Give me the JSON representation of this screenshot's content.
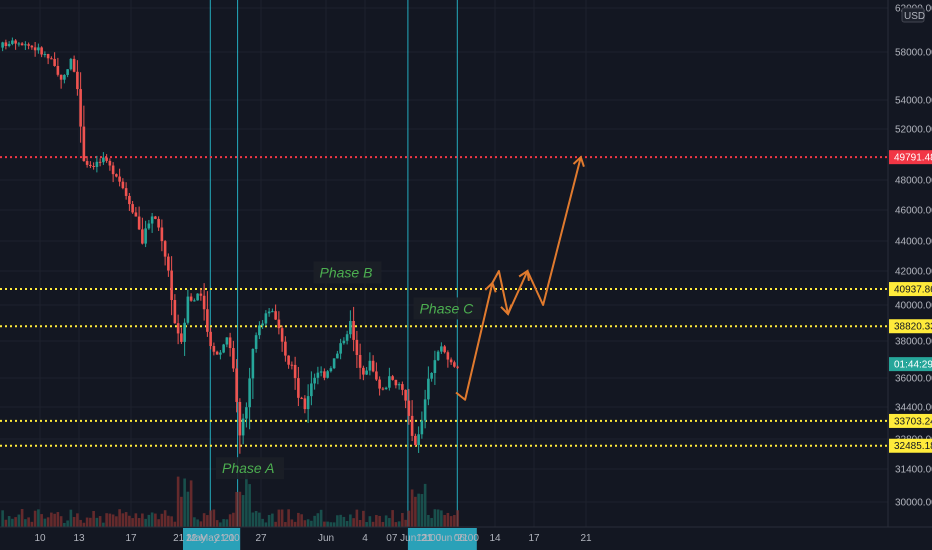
{
  "chart_data": {
    "type": "candlestick",
    "currency": "USD",
    "y_ticks": [
      "30000.00",
      "31400.00",
      "32800.00",
      "34400.00",
      "36000.00",
      "38000.00",
      "40000.00",
      "42000.00",
      "44000.00",
      "46000.00",
      "48000.00",
      "52000.00",
      "54000.00",
      "58000.00",
      "62000.00"
    ],
    "y_tick_values": [
      30000,
      31400,
      32800,
      34400,
      36000,
      38000,
      40000,
      42000,
      44000,
      46000,
      48000,
      52000,
      54000,
      58000,
      62000
    ],
    "x_ticks": [
      {
        "label": "10",
        "day": 10
      },
      {
        "label": "13",
        "day": 13
      },
      {
        "label": "17",
        "day": 17
      },
      {
        "label": "27",
        "day": 27
      },
      {
        "label": "Jun",
        "day": 32
      },
      {
        "label": "4",
        "day": 35
      },
      {
        "label": "14",
        "day": 45
      },
      {
        "label": "17",
        "day": 48
      },
      {
        "label": "21",
        "day": 52
      }
    ],
    "x_highlight_labels": [
      {
        "label": "21 May",
        "day": 21.5
      },
      {
        "label": "22 May '21",
        "day": 23.1
      },
      {
        "label": "21:00",
        "day": 24.4
      },
      {
        "label": "07 Jun '21",
        "day": 38.4
      },
      {
        "label": "12:00",
        "day": 39.9
      },
      {
        "label": "11 Jun '21",
        "day": 41.2
      },
      {
        "label": "06:00",
        "day": 42.8
      }
    ],
    "vertical_lines_days": [
      23.1,
      25.2,
      38.3,
      42.1
    ],
    "horizontal_levels": [
      {
        "label": "49791.48",
        "value": 49791.48,
        "color": "#f23645",
        "style": "dotted"
      },
      {
        "label": "40937.86",
        "value": 40937.86,
        "color": "#ffeb3b",
        "style": "dotted"
      },
      {
        "label": "38820.33",
        "value": 38820.33,
        "color": "#ffeb3b",
        "style": "dotted"
      },
      {
        "label": "33703.24",
        "value": 33703.24,
        "color": "#ffeb3b",
        "style": "dotted"
      },
      {
        "label": "32485.18",
        "value": 32485.18,
        "color": "#ffeb3b",
        "style": "dotted"
      }
    ],
    "last_price": {
      "label": "01:44:29",
      "value": 36750,
      "color": "#26a69a"
    },
    "phase_labels": [
      {
        "text": "Phase A",
        "day": 24.0,
        "value": 31350
      },
      {
        "text": "Phase B",
        "day": 31.5,
        "value": 41800
      },
      {
        "text": "Phase C",
        "day": 39.2,
        "value": 39700
      }
    ],
    "forecast_path": [
      {
        "day": 42.0,
        "value": 35200
      },
      {
        "day": 42.7,
        "value": 34800
      },
      {
        "day": 44.8,
        "value": 41300
      },
      {
        "day": 45.3,
        "value": 42000
      },
      {
        "day": 46.0,
        "value": 39500
      },
      {
        "day": 47.5,
        "value": 42000
      },
      {
        "day": 48.7,
        "value": 40000
      },
      {
        "day": 51.6,
        "value": 49791
      }
    ],
    "price_anchors": [
      [
        7.0,
        58400
      ],
      [
        8.0,
        59200
      ],
      [
        9.0,
        58800
      ],
      [
        10.0,
        58200
      ],
      [
        11.0,
        57200
      ],
      [
        11.5,
        56000
      ],
      [
        12.0,
        55900
      ],
      [
        12.5,
        57600
      ],
      [
        13.0,
        55000
      ],
      [
        13.5,
        49600
      ],
      [
        14.0,
        49200
      ],
      [
        15.0,
        49500
      ],
      [
        16.0,
        48500
      ],
      [
        17.0,
        46600
      ],
      [
        17.5,
        45600
      ],
      [
        18.0,
        44000
      ],
      [
        18.5,
        45300
      ],
      [
        19.0,
        45500
      ],
      [
        19.5,
        44200
      ],
      [
        20.0,
        42000
      ],
      [
        20.5,
        39000
      ],
      [
        21.0,
        38000
      ],
      [
        21.5,
        40500
      ],
      [
        22.0,
        40300
      ],
      [
        22.5,
        40600
      ],
      [
        23.0,
        38500
      ],
      [
        23.5,
        37400
      ],
      [
        24.0,
        37400
      ],
      [
        24.5,
        38400
      ],
      [
        25.0,
        36600
      ],
      [
        25.5,
        33000
      ],
      [
        26.0,
        34500
      ],
      [
        26.5,
        37500
      ],
      [
        27.0,
        38800
      ],
      [
        27.5,
        39500
      ],
      [
        28.0,
        39800
      ],
      [
        28.5,
        38500
      ],
      [
        29.0,
        37000
      ],
      [
        29.5,
        36700
      ],
      [
        30.0,
        35000
      ],
      [
        30.5,
        34400
      ],
      [
        31.0,
        35800
      ],
      [
        31.5,
        36400
      ],
      [
        32.0,
        36200
      ],
      [
        32.5,
        36700
      ],
      [
        33.0,
        37300
      ],
      [
        33.5,
        38200
      ],
      [
        34.0,
        39000
      ],
      [
        34.5,
        37100
      ],
      [
        35.0,
        36400
      ],
      [
        35.5,
        36800
      ],
      [
        36.0,
        35800
      ],
      [
        36.5,
        35400
      ],
      [
        37.0,
        35900
      ],
      [
        37.5,
        35800
      ],
      [
        38.0,
        35500
      ],
      [
        38.5,
        33800
      ],
      [
        39.0,
        32400
      ],
      [
        39.5,
        33600
      ],
      [
        40.0,
        35800
      ],
      [
        40.5,
        37000
      ],
      [
        41.0,
        37600
      ],
      [
        41.5,
        37000
      ],
      [
        42.0,
        36750
      ]
    ]
  }
}
